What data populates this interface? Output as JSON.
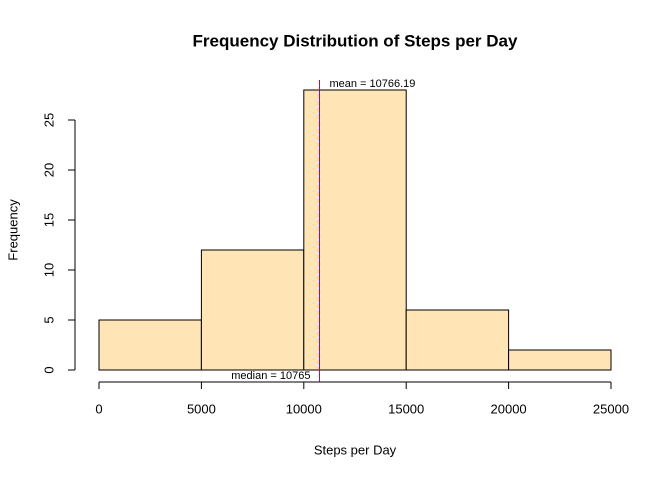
{
  "chart_data": {
    "type": "histogram",
    "title": "Frequency Distribution of Steps per Day",
    "xlabel": "Steps per Day",
    "ylabel": "Frequency",
    "bins": [
      0,
      5000,
      10000,
      15000,
      20000,
      25000
    ],
    "values": [
      5,
      12,
      28,
      6,
      2
    ],
    "color": "#ffe4b5",
    "xlim": [
      0,
      25000
    ],
    "xticks": [
      0,
      5000,
      10000,
      15000,
      20000,
      25000
    ],
    "ylim": [
      0,
      28
    ],
    "yticks": [
      0,
      5,
      10,
      15,
      20,
      25
    ],
    "mean": 10766.19,
    "mean_label": "mean = 10766.19",
    "mean_color": "#ff0000",
    "median": 10765,
    "median_label": "median = 10765",
    "median_color": "#0000ff"
  }
}
